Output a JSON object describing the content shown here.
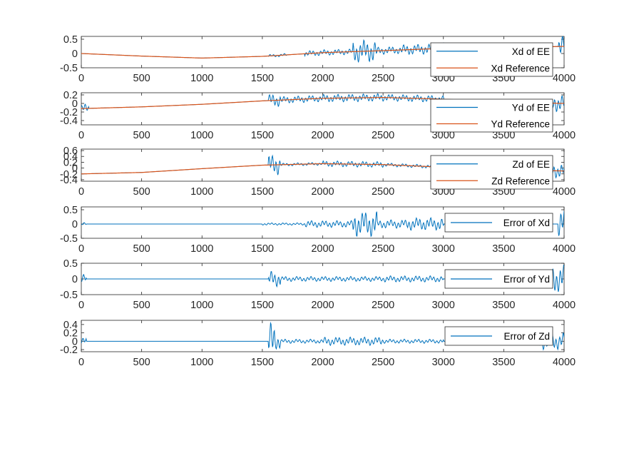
{
  "colors": {
    "ee": "#0072BD",
    "ref": "#D95319"
  },
  "chart_data": [
    {
      "type": "line",
      "xlim": [
        0,
        4000
      ],
      "ylim": [
        -0.5,
        0.6
      ],
      "xticks": [
        "0",
        "500",
        "1000",
        "1500",
        "2000",
        "2500",
        "3000",
        "3500",
        "4000"
      ],
      "yticks": [
        {
          "v": 0.5,
          "label": "0.5"
        },
        {
          "v": 0,
          "label": "0"
        },
        {
          "v": -0.5,
          "label": "-0.5"
        }
      ],
      "series": [
        {
          "name": "Xd of EE",
          "color": "#0072BD",
          "points": [
            [
              0,
              0.0
            ],
            [
              500,
              -0.09
            ],
            [
              1000,
              -0.16
            ],
            [
              1500,
              -0.1
            ],
            [
              2000,
              0.03
            ],
            [
              2500,
              0.1
            ],
            [
              3000,
              0.18
            ],
            [
              3500,
              0.22
            ],
            [
              3900,
              0.24
            ],
            [
              4000,
              0.25
            ]
          ],
          "osc": [
            [
              1550,
              1700,
              0.05
            ],
            [
              1850,
              2250,
              0.1
            ],
            [
              2250,
              2450,
              0.4
            ],
            [
              2450,
              2650,
              0.13
            ],
            [
              2650,
              3000,
              0.18
            ],
            [
              3950,
              4000,
              0.4
            ]
          ]
        },
        {
          "name": "Xd Reference",
          "color": "#D95319",
          "points": [
            [
              0,
              0.0
            ],
            [
              500,
              -0.09
            ],
            [
              1000,
              -0.16
            ],
            [
              1500,
              -0.1
            ],
            [
              2000,
              0.03
            ],
            [
              2500,
              0.1
            ],
            [
              3000,
              0.18
            ],
            [
              3500,
              0.22
            ],
            [
              3900,
              0.24
            ],
            [
              4000,
              0.25
            ]
          ]
        }
      ]
    },
    {
      "type": "line",
      "xlim": [
        0,
        4000
      ],
      "ylim": [
        -0.5,
        0.25
      ],
      "xticks": [
        "0",
        "500",
        "1000",
        "1500",
        "2000",
        "2500",
        "3000",
        "3500",
        "4000"
      ],
      "yticks": [
        {
          "v": 0.2,
          "label": "0.2"
        },
        {
          "v": 0,
          "label": "0"
        },
        {
          "v": -0.2,
          "label": "-0.2"
        },
        {
          "v": -0.4,
          "label": "-0.4"
        }
      ],
      "series": [
        {
          "name": "Yd of EE",
          "color": "#0072BD",
          "points": [
            [
              0,
              -0.12
            ],
            [
              500,
              -0.08
            ],
            [
              1000,
              -0.02
            ],
            [
              1500,
              0.06
            ],
            [
              2000,
              0.12
            ],
            [
              2500,
              0.14
            ],
            [
              3000,
              0.1
            ],
            [
              3500,
              0.04
            ],
            [
              4000,
              0.0
            ]
          ],
          "osc": [
            [
              0,
              60,
              0.1
            ],
            [
              1550,
              1650,
              0.15
            ],
            [
              1650,
              2000,
              0.08
            ],
            [
              2000,
              2500,
              0.09
            ],
            [
              2500,
              3000,
              0.08
            ],
            [
              3900,
              4000,
              0.2
            ]
          ]
        },
        {
          "name": "Yd Reference",
          "color": "#D95319",
          "points": [
            [
              0,
              -0.12
            ],
            [
              500,
              -0.08
            ],
            [
              1000,
              -0.02
            ],
            [
              1500,
              0.06
            ],
            [
              2000,
              0.12
            ],
            [
              2500,
              0.14
            ],
            [
              3000,
              0.1
            ],
            [
              3500,
              0.04
            ],
            [
              4000,
              0.0
            ]
          ]
        }
      ]
    },
    {
      "type": "line",
      "xlim": [
        0,
        4000
      ],
      "ylim": [
        -0.45,
        0.65
      ],
      "xticks": [
        "0",
        "500",
        "1000",
        "1500",
        "2000",
        "2500",
        "3000",
        "3500",
        "4000"
      ],
      "yticks": [
        {
          "v": 0.6,
          "label": "0.6"
        },
        {
          "v": 0.4,
          "label": "0.4"
        },
        {
          "v": 0.2,
          "label": "0.2"
        },
        {
          "v": 0,
          "label": "0"
        },
        {
          "v": -0.2,
          "label": "-0.2"
        },
        {
          "v": -0.4,
          "label": "-0.4"
        }
      ],
      "series": [
        {
          "name": "Zd of EE",
          "color": "#0072BD",
          "points": [
            [
              0,
              -0.2
            ],
            [
              500,
              -0.15
            ],
            [
              1000,
              -0.02
            ],
            [
              1500,
              0.1
            ],
            [
              2000,
              0.15
            ],
            [
              2500,
              0.12
            ],
            [
              3000,
              0.03
            ],
            [
              3500,
              -0.05
            ],
            [
              4000,
              -0.1
            ]
          ],
          "osc": [
            [
              1550,
              1650,
              0.35
            ],
            [
              1650,
              2000,
              0.05
            ],
            [
              2000,
              2500,
              0.1
            ],
            [
              2500,
              3000,
              0.06
            ],
            [
              3900,
              4000,
              0.25
            ]
          ]
        },
        {
          "name": "Zd Reference",
          "color": "#D95319",
          "points": [
            [
              0,
              -0.2
            ],
            [
              500,
              -0.15
            ],
            [
              1000,
              -0.02
            ],
            [
              1500,
              0.1
            ],
            [
              2000,
              0.15
            ],
            [
              2500,
              0.12
            ],
            [
              3000,
              0.03
            ],
            [
              3500,
              -0.05
            ],
            [
              4000,
              -0.1
            ]
          ]
        }
      ]
    },
    {
      "type": "line",
      "xlim": [
        0,
        4000
      ],
      "ylim": [
        -0.5,
        0.6
      ],
      "xticks": [
        "0",
        "500",
        "1000",
        "1500",
        "2000",
        "2500",
        "3000",
        "3500",
        "4000"
      ],
      "yticks": [
        {
          "v": 0.5,
          "label": "0.5"
        },
        {
          "v": 0,
          "label": "0"
        },
        {
          "v": -0.5,
          "label": "-0.5"
        }
      ],
      "series": [
        {
          "name": "Error of Xd",
          "color": "#0072BD",
          "points": [
            [
              0,
              0.0
            ],
            [
              4000,
              0.0
            ]
          ],
          "osc": [
            [
              0,
              40,
              0.05
            ],
            [
              1500,
              1850,
              0.04
            ],
            [
              1850,
              2250,
              0.12
            ],
            [
              2250,
              2450,
              0.45
            ],
            [
              2450,
              2700,
              0.15
            ],
            [
              2700,
              3000,
              0.22
            ],
            [
              3950,
              4000,
              0.5
            ]
          ]
        }
      ]
    },
    {
      "type": "line",
      "xlim": [
        0,
        4000
      ],
      "ylim": [
        -0.5,
        0.5
      ],
      "xticks": [
        "0",
        "500",
        "1000",
        "1500",
        "2000",
        "2500",
        "3000",
        "3500",
        "4000"
      ],
      "yticks": [
        {
          "v": 0.5,
          "label": "0.5"
        },
        {
          "v": 0,
          "label": "0"
        },
        {
          "v": -0.5,
          "label": "-0.5"
        }
      ],
      "series": [
        {
          "name": "Error of Yd",
          "color": "#0072BD",
          "points": [
            [
              0,
              0.0
            ],
            [
              4000,
              0.0
            ]
          ],
          "osc": [
            [
              0,
              40,
              0.15
            ],
            [
              1550,
              1650,
              0.25
            ],
            [
              1650,
              2000,
              0.08
            ],
            [
              2000,
              2500,
              0.08
            ],
            [
              2500,
              3000,
              0.1
            ],
            [
              3900,
              4000,
              0.45
            ]
          ]
        }
      ]
    },
    {
      "type": "line",
      "xlim": [
        0,
        4000
      ],
      "ylim": [
        -0.25,
        0.5
      ],
      "xticks": [
        "0",
        "500",
        "1000",
        "1500",
        "2000",
        "2500",
        "3000",
        "3500",
        "4000"
      ],
      "yticks": [
        {
          "v": 0.4,
          "label": "0.4"
        },
        {
          "v": 0.2,
          "label": "0.2"
        },
        {
          "v": 0,
          "label": "0"
        },
        {
          "v": -0.2,
          "label": "-0.2"
        }
      ],
      "series": [
        {
          "name": "Error of Zd",
          "color": "#0072BD",
          "points": [
            [
              0,
              0.0
            ],
            [
              4000,
              0.0
            ]
          ],
          "osc": [
            [
              0,
              40,
              0.08
            ],
            [
              1550,
              1600,
              0.45
            ],
            [
              1600,
              1650,
              0.2
            ],
            [
              1650,
              2000,
              0.05
            ],
            [
              2000,
              2500,
              0.1
            ],
            [
              2500,
              3000,
              0.05
            ],
            [
              3800,
              4000,
              0.2
            ]
          ]
        }
      ]
    }
  ]
}
